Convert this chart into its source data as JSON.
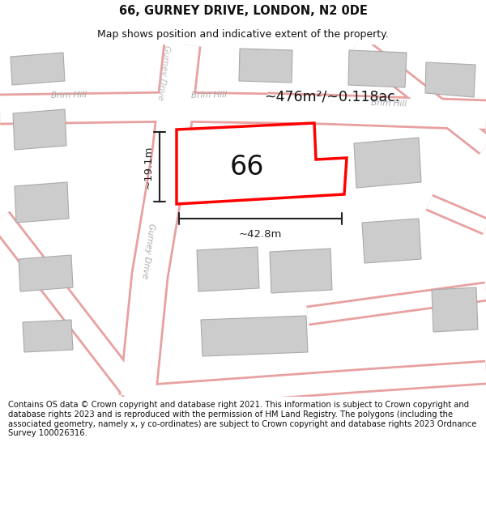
{
  "title": "66, GURNEY DRIVE, LONDON, N2 0DE",
  "subtitle": "Map shows position and indicative extent of the property.",
  "footer": "Contains OS data © Crown copyright and database right 2021. This information is subject to Crown copyright and database rights 2023 and is reproduced with the permission of HM Land Registry. The polygons (including the associated geometry, namely x, y co-ordinates) are subject to Crown copyright and database rights 2023 Ordnance Survey 100026316.",
  "bg_color": "#ede9e3",
  "road_color": "#ffffff",
  "road_border_color": "#e8a0a0",
  "building_color": "#cccccc",
  "building_border": "#aaaaaa",
  "highlight_color": "#ff0000",
  "highlight_fill": "#ffffff",
  "title_fontsize": 10.5,
  "subtitle_fontsize": 9,
  "footer_fontsize": 7.2,
  "road_label_color": "#aaaaaa",
  "dim_color": "#222222",
  "area_text": "~476m²/~0.118ac.",
  "width_text": "~42.8m",
  "height_text": "~19.1m",
  "label_66": "66",
  "brim_hill_1": "Brim Hill",
  "brim_hill_2": "Brim Hill",
  "brim_hill_3": "Brim Hill",
  "gurney_drive_1": "Gurney Drive",
  "gurney_drive_2": "Gurney Drive"
}
